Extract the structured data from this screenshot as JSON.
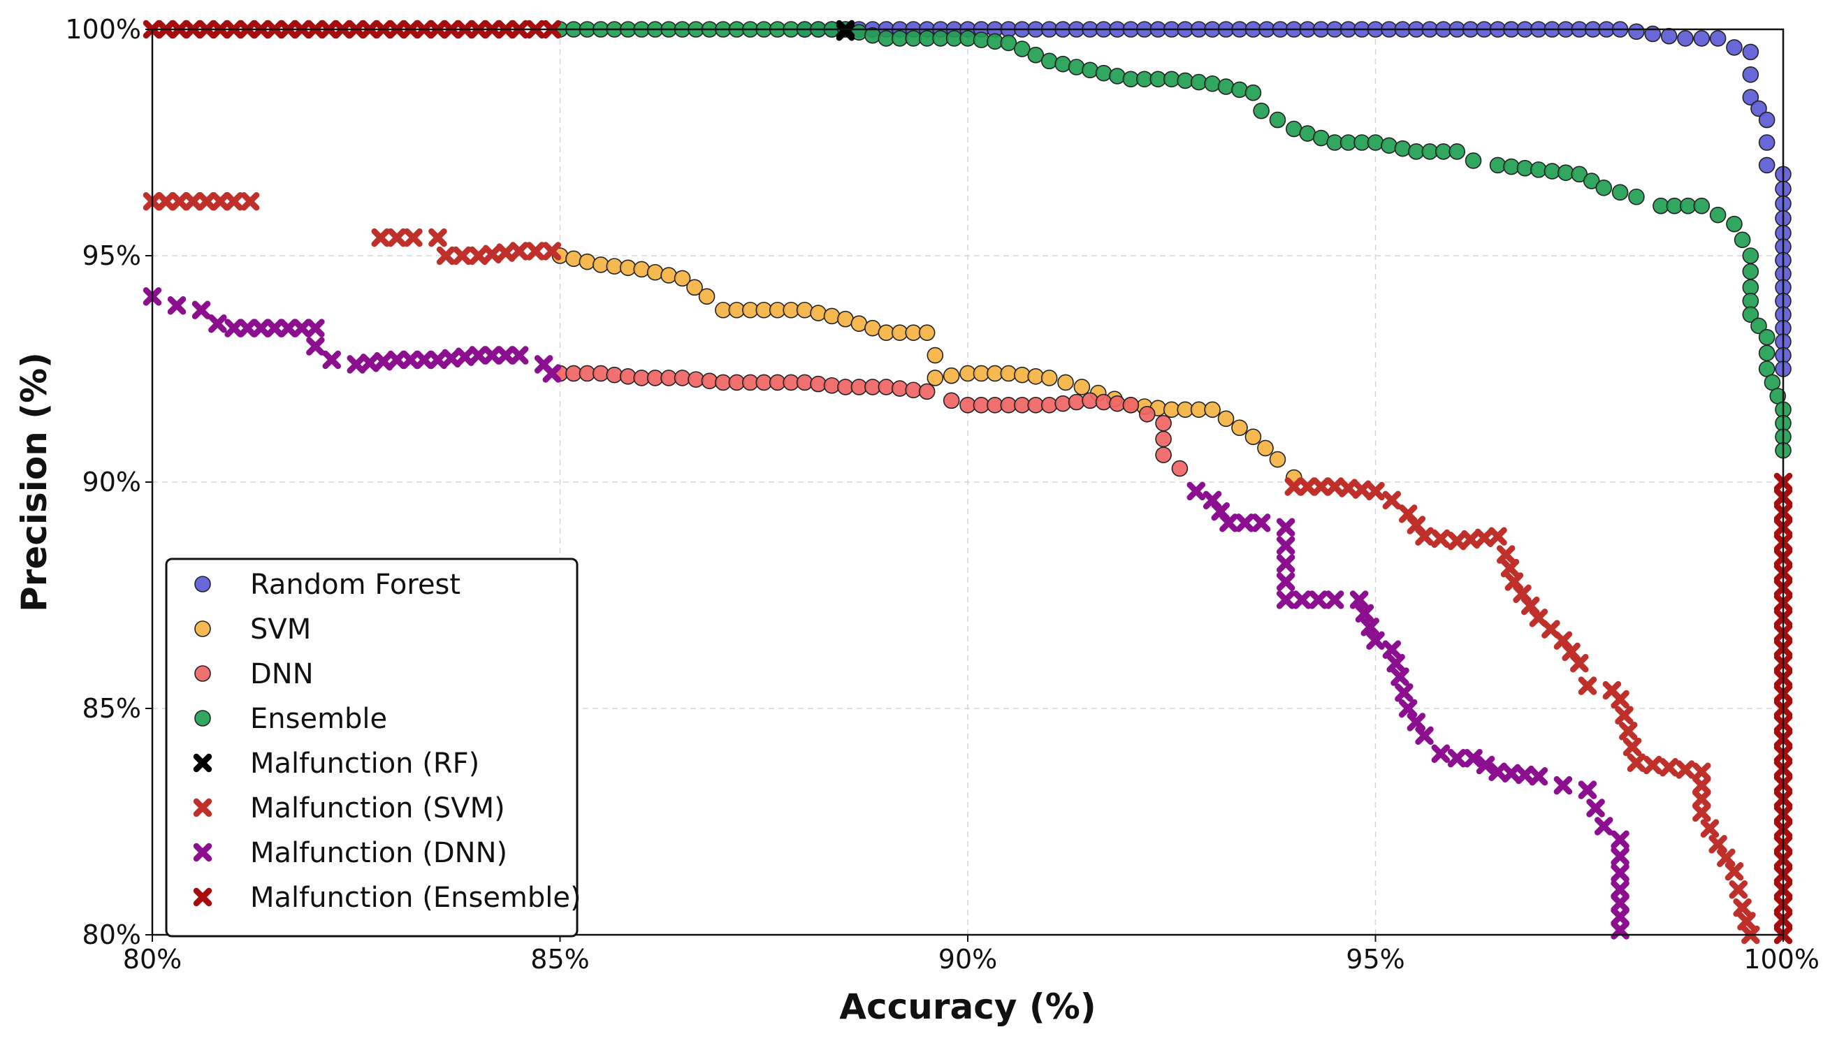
{
  "chart_data": {
    "type": "scatter",
    "title": "",
    "xlabel": "Accuracy (%)",
    "ylabel": "Precision (%)",
    "xlim": [
      80,
      100
    ],
    "ylim": [
      80,
      100
    ],
    "grid": true,
    "legend_position": "bottom-left",
    "xticks": [
      {
        "value": 80,
        "label": "80%"
      },
      {
        "value": 85,
        "label": "85%"
      },
      {
        "value": 90,
        "label": "90%"
      },
      {
        "value": 95,
        "label": "95%"
      },
      {
        "value": 100,
        "label": "100%"
      }
    ],
    "yticks": [
      {
        "value": 80,
        "label": "80%"
      },
      {
        "value": 85,
        "label": "85%"
      },
      {
        "value": 90,
        "label": "90%"
      },
      {
        "value": 95,
        "label": "95%"
      },
      {
        "value": 100,
        "label": "100%"
      }
    ],
    "series": [
      {
        "name": "Random Forest",
        "marker": "circle",
        "color": "#5b5bd6",
        "points": [
          [
            88.0,
            100.0
          ],
          [
            89.0,
            100.0
          ],
          [
            89.5,
            100.0
          ],
          [
            90.0,
            100.0
          ],
          [
            91.0,
            100.0
          ],
          [
            91.5,
            100.0
          ],
          [
            92.0,
            100.0
          ],
          [
            93.0,
            100.0
          ],
          [
            94.0,
            100.0
          ],
          [
            94.5,
            100.0
          ],
          [
            95.0,
            100.0
          ],
          [
            95.5,
            100.0
          ],
          [
            96.0,
            100.0
          ],
          [
            96.5,
            100.0
          ],
          [
            97.0,
            100.0
          ],
          [
            97.5,
            100.0
          ],
          [
            98.0,
            100.0
          ],
          [
            98.4,
            99.9
          ],
          [
            98.8,
            99.8
          ],
          [
            99.2,
            99.8
          ],
          [
            99.4,
            99.6
          ],
          [
            99.6,
            99.5
          ],
          [
            99.6,
            99.0
          ],
          [
            99.6,
            98.5
          ],
          [
            99.8,
            98.0
          ],
          [
            99.8,
            97.5
          ],
          [
            99.8,
            97.0
          ],
          [
            100.0,
            96.8
          ],
          [
            100.0,
            95.5
          ],
          [
            100.0,
            94.0
          ],
          [
            100.0,
            92.5
          ]
        ]
      },
      {
        "name": "SVM",
        "marker": "circle",
        "color": "#f5b342",
        "points": [
          [
            85.0,
            95.0
          ],
          [
            85.5,
            94.8
          ],
          [
            86.0,
            94.7
          ],
          [
            86.5,
            94.5
          ],
          [
            86.8,
            94.1
          ],
          [
            87.0,
            93.8
          ],
          [
            87.5,
            93.8
          ],
          [
            88.0,
            93.8
          ],
          [
            88.5,
            93.6
          ],
          [
            89.0,
            93.3
          ],
          [
            89.5,
            93.3
          ],
          [
            89.6,
            92.8
          ],
          [
            89.6,
            92.3
          ],
          [
            90.0,
            92.4
          ],
          [
            90.5,
            92.4
          ],
          [
            91.0,
            92.3
          ],
          [
            91.4,
            92.1
          ],
          [
            92.0,
            91.7
          ],
          [
            92.5,
            91.6
          ],
          [
            93.0,
            91.6
          ],
          [
            93.5,
            91.0
          ],
          [
            93.8,
            90.5
          ],
          [
            94.0,
            90.1
          ]
        ]
      },
      {
        "name": "DNN",
        "marker": "circle",
        "color": "#f06565",
        "points": [
          [
            85.0,
            92.4
          ],
          [
            85.5,
            92.4
          ],
          [
            86.0,
            92.3
          ],
          [
            86.5,
            92.3
          ],
          [
            87.0,
            92.2
          ],
          [
            87.5,
            92.2
          ],
          [
            88.0,
            92.2
          ],
          [
            88.5,
            92.1
          ],
          [
            89.0,
            92.1
          ],
          [
            89.5,
            92.0
          ],
          [
            89.8,
            91.8
          ],
          [
            90.0,
            91.7
          ],
          [
            90.5,
            91.7
          ],
          [
            91.0,
            91.7
          ],
          [
            91.5,
            91.8
          ],
          [
            92.0,
            91.7
          ],
          [
            92.4,
            91.3
          ],
          [
            92.4,
            90.6
          ],
          [
            92.6,
            90.3
          ]
        ]
      },
      {
        "name": "Ensemble",
        "marker": "circle",
        "color": "#21a052",
        "points": [
          [
            85.0,
            100.0
          ],
          [
            85.5,
            100.0
          ],
          [
            86.0,
            100.0
          ],
          [
            86.5,
            100.0
          ],
          [
            87.0,
            100.0
          ],
          [
            87.5,
            100.0
          ],
          [
            88.0,
            100.0
          ],
          [
            88.5,
            100.0
          ],
          [
            89.0,
            99.8
          ],
          [
            89.5,
            99.8
          ],
          [
            90.0,
            99.8
          ],
          [
            90.5,
            99.7
          ],
          [
            91.0,
            99.3
          ],
          [
            91.5,
            99.1
          ],
          [
            92.0,
            98.9
          ],
          [
            92.5,
            98.9
          ],
          [
            93.0,
            98.8
          ],
          [
            93.5,
            98.6
          ],
          [
            93.6,
            98.2
          ],
          [
            94.0,
            97.8
          ],
          [
            94.5,
            97.5
          ],
          [
            95.0,
            97.5
          ],
          [
            95.5,
            97.3
          ],
          [
            96.0,
            97.3
          ],
          [
            96.2,
            97.1
          ],
          [
            96.5,
            97.0
          ],
          [
            97.0,
            96.9
          ],
          [
            97.5,
            96.8
          ],
          [
            97.8,
            96.5
          ],
          [
            98.2,
            96.3
          ],
          [
            98.5,
            96.1
          ],
          [
            99.0,
            96.1
          ],
          [
            99.4,
            95.7
          ],
          [
            99.6,
            95.0
          ],
          [
            99.6,
            94.3
          ],
          [
            99.6,
            93.7
          ],
          [
            99.8,
            93.2
          ],
          [
            99.8,
            92.5
          ],
          [
            100.0,
            91.6
          ],
          [
            100.0,
            90.7
          ]
        ]
      },
      {
        "name": "Malfunction (RF)",
        "marker": "x",
        "color": "#000000",
        "points": [
          [
            88.5,
            100.0
          ],
          [
            88.5,
            99.95
          ]
        ]
      },
      {
        "name": "Malfunction (SVM)",
        "marker": "x",
        "color": "#c0302b",
        "points": [
          [
            80.0,
            96.2
          ],
          [
            80.5,
            96.2
          ],
          [
            81.0,
            96.2
          ],
          [
            81.2,
            96.2
          ],
          [
            82.8,
            95.4
          ],
          [
            83.2,
            95.4
          ],
          [
            83.5,
            95.4
          ],
          [
            83.6,
            95.0
          ],
          [
            84.0,
            95.0
          ],
          [
            84.5,
            95.1
          ],
          [
            84.9,
            95.1
          ],
          [
            94.0,
            89.9
          ],
          [
            94.5,
            89.9
          ],
          [
            95.0,
            89.8
          ],
          [
            95.2,
            89.6
          ],
          [
            95.4,
            89.3
          ],
          [
            95.6,
            88.8
          ],
          [
            96.0,
            88.7
          ],
          [
            96.5,
            88.8
          ],
          [
            96.6,
            88.4
          ],
          [
            96.7,
            87.8
          ],
          [
            97.0,
            87.0
          ],
          [
            97.3,
            86.5
          ],
          [
            97.5,
            86.0
          ],
          [
            97.6,
            85.5
          ],
          [
            97.9,
            85.4
          ],
          [
            98.0,
            85.2
          ],
          [
            98.1,
            84.5
          ],
          [
            98.2,
            83.8
          ],
          [
            98.6,
            83.7
          ],
          [
            99.0,
            83.6
          ],
          [
            99.0,
            82.7
          ],
          [
            99.2,
            82.0
          ],
          [
            99.4,
            81.4
          ],
          [
            99.5,
            80.6
          ],
          [
            99.6,
            80.0
          ]
        ]
      },
      {
        "name": "Malfunction (DNN)",
        "marker": "x",
        "color": "#8b0f8f",
        "points": [
          [
            80.0,
            94.1
          ],
          [
            80.3,
            93.9
          ],
          [
            80.6,
            93.8
          ],
          [
            80.8,
            93.5
          ],
          [
            81.0,
            93.4
          ],
          [
            81.5,
            93.4
          ],
          [
            82.0,
            93.4
          ],
          [
            82.0,
            93.0
          ],
          [
            82.2,
            92.7
          ],
          [
            82.5,
            92.6
          ],
          [
            83.0,
            92.7
          ],
          [
            83.5,
            92.7
          ],
          [
            84.0,
            92.8
          ],
          [
            84.5,
            92.8
          ],
          [
            84.8,
            92.6
          ],
          [
            84.9,
            92.4
          ],
          [
            92.8,
            89.8
          ],
          [
            93.0,
            89.6
          ],
          [
            93.2,
            89.1
          ],
          [
            93.6,
            89.1
          ],
          [
            93.9,
            89.0
          ],
          [
            93.9,
            88.2
          ],
          [
            93.9,
            87.4
          ],
          [
            94.5,
            87.4
          ],
          [
            94.8,
            87.4
          ],
          [
            95.0,
            86.5
          ],
          [
            95.2,
            86.3
          ],
          [
            95.3,
            85.7
          ],
          [
            95.4,
            85.0
          ],
          [
            95.6,
            84.4
          ],
          [
            95.8,
            84.0
          ],
          [
            96.0,
            83.9
          ],
          [
            96.2,
            83.9
          ],
          [
            96.5,
            83.6
          ],
          [
            97.0,
            83.5
          ],
          [
            97.3,
            83.3
          ],
          [
            97.6,
            83.2
          ],
          [
            97.8,
            82.4
          ],
          [
            98.0,
            82.1
          ],
          [
            98.0,
            81.0
          ],
          [
            98.0,
            80.1
          ]
        ]
      },
      {
        "name": "Malfunction (Ensemble)",
        "marker": "x",
        "color": "#a80d0d",
        "points": [
          [
            80.0,
            100.0
          ],
          [
            80.5,
            100.0
          ],
          [
            81.0,
            100.0
          ],
          [
            81.5,
            100.0
          ],
          [
            82.0,
            100.0
          ],
          [
            82.5,
            100.0
          ],
          [
            83.0,
            100.0
          ],
          [
            83.5,
            100.0
          ],
          [
            84.0,
            100.0
          ],
          [
            84.5,
            100.0
          ],
          [
            84.9,
            100.0
          ],
          [
            100.0,
            90.0
          ],
          [
            100.0,
            88.0
          ],
          [
            100.0,
            86.0
          ],
          [
            100.0,
            84.0
          ],
          [
            100.0,
            82.0
          ],
          [
            100.0,
            80.0
          ]
        ]
      }
    ]
  }
}
